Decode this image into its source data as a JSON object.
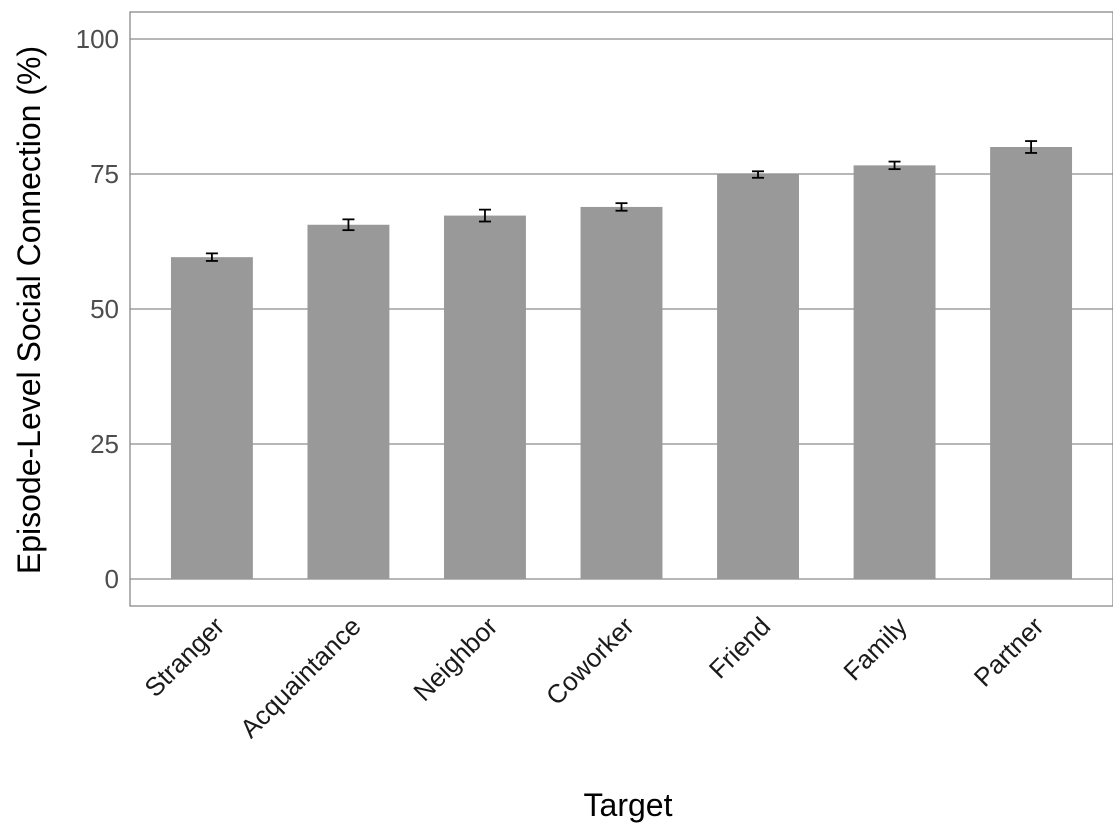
{
  "chart_data": {
    "type": "bar",
    "title": "",
    "xlabel": "Target",
    "ylabel": "Episode-Level Social Connection (%)",
    "categories": [
      "Stranger",
      "Acquaintance",
      "Neighbor",
      "Coworker",
      "Friend",
      "Family",
      "Partner"
    ],
    "values": [
      59.6,
      65.6,
      67.3,
      68.9,
      74.9,
      76.6,
      80.0
    ],
    "error_low": [
      58.9,
      64.6,
      66.2,
      68.2,
      74.3,
      75.9,
      78.9
    ],
    "error_high": [
      60.3,
      66.6,
      68.4,
      69.6,
      75.5,
      77.3,
      81.1
    ],
    "yticks": [
      "0",
      "25",
      "50",
      "75",
      "100"
    ],
    "ylim": [
      -5,
      105
    ],
    "grid": "horizontal major",
    "legend": "none",
    "colors": {
      "bar": "#999999",
      "grid": "#8c8c8c",
      "errorbar": "#000000",
      "frame": "#808080"
    }
  }
}
